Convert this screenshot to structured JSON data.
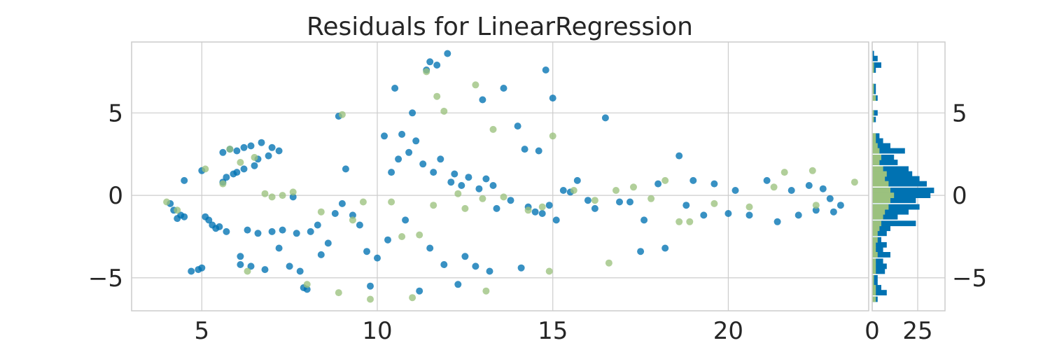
{
  "colors": {
    "train": "#0072b2",
    "test": "#9bc17e",
    "grid": "#cccccc",
    "text": "#262626"
  },
  "chart_data": [
    {
      "type": "scatter",
      "title": "Residuals for LinearRegression",
      "xlabel": "",
      "ylabel": "",
      "xlim": [
        3.0,
        24.0
      ],
      "ylim": [
        -7.0,
        9.3
      ],
      "xticks": [
        5,
        10,
        15,
        20
      ],
      "xtick_labels": [
        "5",
        "10",
        "15",
        "20"
      ],
      "yticks": [
        -5,
        0,
        5
      ],
      "ytick_labels": [
        "−5",
        "0",
        "5"
      ],
      "grid": true,
      "series": [
        {
          "role": "train",
          "color": "#0072b2",
          "points": [
            [
              4.1,
              -0.5
            ],
            [
              4.2,
              -0.9
            ],
            [
              4.3,
              -1.4
            ],
            [
              4.4,
              -1.2
            ],
            [
              4.5,
              0.9
            ],
            [
              4.5,
              -1.3
            ],
            [
              4.7,
              -4.6
            ],
            [
              4.9,
              -4.5
            ],
            [
              5.0,
              -4.4
            ],
            [
              5.0,
              1.5
            ],
            [
              5.1,
              -1.3
            ],
            [
              5.2,
              -1.5
            ],
            [
              5.3,
              -1.8
            ],
            [
              5.4,
              -2.0
            ],
            [
              5.5,
              -1.9
            ],
            [
              5.6,
              0.8
            ],
            [
              5.6,
              2.6
            ],
            [
              5.7,
              1.1
            ],
            [
              5.7,
              -2.2
            ],
            [
              5.8,
              2.8
            ],
            [
              5.9,
              1.3
            ],
            [
              6.0,
              1.4
            ],
            [
              6.0,
              2.7
            ],
            [
              6.1,
              -3.7
            ],
            [
              6.1,
              -4.2
            ],
            [
              6.2,
              1.6
            ],
            [
              6.2,
              2.9
            ],
            [
              6.3,
              -2.1
            ],
            [
              6.4,
              3.0
            ],
            [
              6.4,
              -4.3
            ],
            [
              6.5,
              1.8
            ],
            [
              6.6,
              2.2
            ],
            [
              6.6,
              -2.3
            ],
            [
              6.7,
              3.2
            ],
            [
              6.8,
              -4.5
            ],
            [
              6.9,
              2.4
            ],
            [
              7.0,
              2.9
            ],
            [
              7.0,
              -2.2
            ],
            [
              7.2,
              2.7
            ],
            [
              7.2,
              -3.2
            ],
            [
              7.3,
              -2.1
            ],
            [
              7.5,
              -4.3
            ],
            [
              7.6,
              -0.1
            ],
            [
              7.7,
              -2.3
            ],
            [
              7.8,
              -4.6
            ],
            [
              7.9,
              -5.6
            ],
            [
              8.0,
              -5.7
            ],
            [
              8.1,
              -2.2
            ],
            [
              8.3,
              -1.8
            ],
            [
              8.4,
              -3.6
            ],
            [
              8.6,
              -2.9
            ],
            [
              8.8,
              -1.1
            ],
            [
              8.9,
              4.8
            ],
            [
              9.0,
              -0.5
            ],
            [
              9.1,
              1.6
            ],
            [
              9.3,
              -1.2
            ],
            [
              9.5,
              -1.8
            ],
            [
              9.7,
              -3.4
            ],
            [
              9.8,
              -5.5
            ],
            [
              10.0,
              -3.8
            ],
            [
              10.2,
              3.6
            ],
            [
              10.3,
              -2.7
            ],
            [
              10.4,
              1.4
            ],
            [
              10.5,
              6.5
            ],
            [
              10.6,
              2.2
            ],
            [
              10.7,
              3.7
            ],
            [
              10.8,
              -1.5
            ],
            [
              10.9,
              2.6
            ],
            [
              11.0,
              5.0
            ],
            [
              11.1,
              3.3
            ],
            [
              11.2,
              -5.8
            ],
            [
              11.3,
              1.9
            ],
            [
              11.4,
              7.6
            ],
            [
              11.5,
              8.1
            ],
            [
              11.5,
              -3.2
            ],
            [
              11.6,
              1.4
            ],
            [
              11.7,
              7.9
            ],
            [
              11.8,
              2.2
            ],
            [
              11.9,
              -4.2
            ],
            [
              12.0,
              8.6
            ],
            [
              12.1,
              0.8
            ],
            [
              12.2,
              1.3
            ],
            [
              12.3,
              -5.4
            ],
            [
              12.4,
              0.6
            ],
            [
              12.5,
              -3.7
            ],
            [
              12.6,
              1.1
            ],
            [
              12.8,
              -4.3
            ],
            [
              12.9,
              0.4
            ],
            [
              13.0,
              5.8
            ],
            [
              13.1,
              1.0
            ],
            [
              13.2,
              -4.6
            ],
            [
              13.3,
              0.6
            ],
            [
              13.4,
              -0.8
            ],
            [
              13.6,
              6.5
            ],
            [
              13.8,
              -0.3
            ],
            [
              14.0,
              4.2
            ],
            [
              14.1,
              -4.4
            ],
            [
              14.2,
              2.8
            ],
            [
              14.3,
              -0.7
            ],
            [
              14.5,
              -1.0
            ],
            [
              14.6,
              2.7
            ],
            [
              14.7,
              -1.1
            ],
            [
              14.8,
              7.6
            ],
            [
              14.9,
              -0.6
            ],
            [
              15.0,
              5.9
            ],
            [
              15.1,
              -1.5
            ],
            [
              15.3,
              0.3
            ],
            [
              15.5,
              0.2
            ],
            [
              15.7,
              0.9
            ],
            [
              16.0,
              -0.3
            ],
            [
              16.2,
              -0.8
            ],
            [
              16.5,
              4.7
            ],
            [
              16.9,
              -0.4
            ],
            [
              17.2,
              -0.4
            ],
            [
              17.5,
              -3.4
            ],
            [
              17.6,
              -1.5
            ],
            [
              18.0,
              0.7
            ],
            [
              18.2,
              -3.2
            ],
            [
              18.6,
              2.4
            ],
            [
              18.8,
              -0.6
            ],
            [
              19.0,
              0.9
            ],
            [
              19.3,
              -1.2
            ],
            [
              19.6,
              0.7
            ],
            [
              20.0,
              -1.1
            ],
            [
              20.2,
              0.3
            ],
            [
              20.6,
              -1.2
            ],
            [
              21.1,
              0.9
            ],
            [
              21.4,
              -1.6
            ],
            [
              21.8,
              0.3
            ],
            [
              22.0,
              -1.2
            ],
            [
              22.3,
              0.6
            ],
            [
              22.5,
              -0.9
            ],
            [
              22.7,
              0.4
            ],
            [
              22.9,
              -0.2
            ],
            [
              23.0,
              -1.0
            ],
            [
              23.2,
              -0.6
            ]
          ]
        },
        {
          "role": "test",
          "color": "#9bc17e",
          "points": [
            [
              4.0,
              -0.4
            ],
            [
              4.3,
              -0.9
            ],
            [
              5.1,
              1.6
            ],
            [
              5.6,
              0.7
            ],
            [
              5.8,
              2.8
            ],
            [
              6.1,
              2.0
            ],
            [
              6.3,
              -4.6
            ],
            [
              6.5,
              2.3
            ],
            [
              6.8,
              0.1
            ],
            [
              7.0,
              -0.1
            ],
            [
              7.3,
              0.0
            ],
            [
              7.6,
              0.2
            ],
            [
              8.0,
              -5.4
            ],
            [
              8.4,
              -1.0
            ],
            [
              8.9,
              -5.9
            ],
            [
              9.0,
              4.9
            ],
            [
              9.3,
              -1.5
            ],
            [
              9.6,
              -0.4
            ],
            [
              9.8,
              -6.3
            ],
            [
              10.4,
              -0.4
            ],
            [
              10.7,
              -2.5
            ],
            [
              11.0,
              -6.2
            ],
            [
              11.2,
              -2.4
            ],
            [
              11.4,
              7.5
            ],
            [
              11.6,
              -0.6
            ],
            [
              11.7,
              6.0
            ],
            [
              11.9,
              5.1
            ],
            [
              12.3,
              0.1
            ],
            [
              12.5,
              -0.8
            ],
            [
              12.8,
              6.7
            ],
            [
              13.0,
              -0.2
            ],
            [
              13.1,
              -5.8
            ],
            [
              13.3,
              4.0
            ],
            [
              13.6,
              -0.1
            ],
            [
              14.3,
              -0.9
            ],
            [
              14.7,
              -0.7
            ],
            [
              14.9,
              -4.6
            ],
            [
              15.0,
              3.6
            ],
            [
              15.6,
              0.3
            ],
            [
              16.2,
              -0.3
            ],
            [
              16.6,
              -4.1
            ],
            [
              16.8,
              0.3
            ],
            [
              17.3,
              0.5
            ],
            [
              17.8,
              -0.2
            ],
            [
              18.2,
              0.9
            ],
            [
              18.6,
              -1.6
            ],
            [
              18.9,
              -1.6
            ],
            [
              19.6,
              -0.5
            ],
            [
              20.6,
              -0.7
            ],
            [
              21.3,
              0.5
            ],
            [
              21.6,
              1.4
            ],
            [
              22.4,
              1.5
            ],
            [
              22.5,
              -0.6
            ],
            [
              23.6,
              0.8
            ]
          ]
        }
      ]
    },
    {
      "type": "histogram",
      "orientation": "horizontal",
      "xticks": [
        0,
        25
      ],
      "xtick_labels": [
        "0",
        "25"
      ],
      "xlim": [
        0,
        40
      ],
      "yticks": [
        -5,
        0,
        5
      ],
      "ytick_labels": [
        "−5",
        "0",
        "5"
      ],
      "bin_width": 0.33,
      "series": [
        {
          "role": "train",
          "color": "#0072b2",
          "bins": [
            [
              8.6,
              1
            ],
            [
              8.3,
              3
            ],
            [
              7.9,
              5
            ],
            [
              7.6,
              2
            ],
            [
              6.6,
              2
            ],
            [
              6.3,
              2
            ],
            [
              5.9,
              3
            ],
            [
              5.0,
              3
            ],
            [
              4.6,
              2
            ],
            [
              3.6,
              4
            ],
            [
              3.3,
              6
            ],
            [
              3.0,
              10
            ],
            [
              2.7,
              18
            ],
            [
              2.3,
              12
            ],
            [
              2.0,
              14
            ],
            [
              1.6,
              20
            ],
            [
              1.3,
              22
            ],
            [
              1.0,
              26
            ],
            [
              0.7,
              30
            ],
            [
              0.3,
              34
            ],
            [
              0.0,
              32
            ],
            [
              -0.3,
              24
            ],
            [
              -0.7,
              26
            ],
            [
              -1.0,
              20
            ],
            [
              -1.3,
              14
            ],
            [
              -1.7,
              24
            ],
            [
              -2.0,
              10
            ],
            [
              -2.3,
              8
            ],
            [
              -2.7,
              5
            ],
            [
              -3.0,
              8
            ],
            [
              -3.3,
              6
            ],
            [
              -3.6,
              10
            ],
            [
              -4.0,
              6
            ],
            [
              -4.3,
              8
            ],
            [
              -4.6,
              7
            ],
            [
              -5.0,
              3
            ],
            [
              -5.3,
              3
            ],
            [
              -5.6,
              5
            ],
            [
              -5.9,
              8
            ],
            [
              -6.3,
              3
            ]
          ]
        },
        {
          "role": "test",
          "color": "#9bc17e",
          "bins": [
            [
              7.9,
              1
            ],
            [
              7.6,
              1
            ],
            [
              6.6,
              1
            ],
            [
              6.3,
              1
            ],
            [
              5.9,
              2
            ],
            [
              5.0,
              1
            ],
            [
              4.6,
              1
            ],
            [
              3.6,
              2
            ],
            [
              3.3,
              2
            ],
            [
              3.0,
              3
            ],
            [
              2.7,
              4
            ],
            [
              2.3,
              5
            ],
            [
              2.0,
              4
            ],
            [
              1.6,
              6
            ],
            [
              1.3,
              8
            ],
            [
              1.0,
              7
            ],
            [
              0.7,
              9
            ],
            [
              0.3,
              10
            ],
            [
              0.0,
              12
            ],
            [
              -0.3,
              10
            ],
            [
              -0.7,
              9
            ],
            [
              -1.0,
              7
            ],
            [
              -1.3,
              6
            ],
            [
              -1.7,
              5
            ],
            [
              -2.0,
              4
            ],
            [
              -2.3,
              3
            ],
            [
              -2.7,
              3
            ],
            [
              -3.0,
              2
            ],
            [
              -3.3,
              2
            ],
            [
              -3.6,
              3
            ],
            [
              -4.0,
              2
            ],
            [
              -4.3,
              2
            ],
            [
              -4.6,
              2
            ],
            [
              -5.0,
              1
            ],
            [
              -5.3,
              1
            ],
            [
              -5.6,
              2
            ],
            [
              -5.9,
              2
            ],
            [
              -6.3,
              2
            ]
          ]
        }
      ]
    }
  ]
}
